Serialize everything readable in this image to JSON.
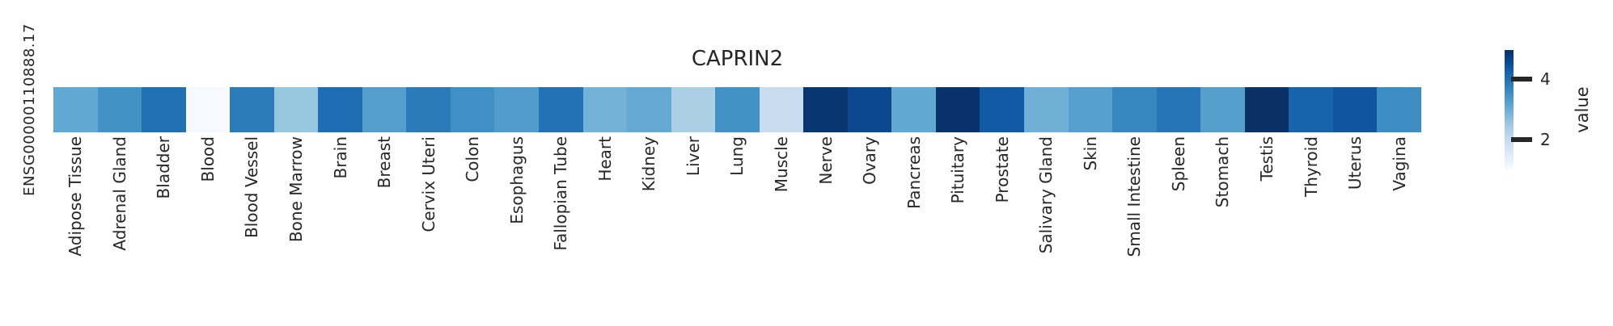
{
  "figure": {
    "title": "CAPRIN2",
    "row_label": "ENSG00000110888.17"
  },
  "colorbar": {
    "label": "value",
    "ticks": [
      {
        "label": "4",
        "frac": 0.243
      },
      {
        "label": "2",
        "frac": 0.75
      }
    ],
    "gradient_top_to_bottom": [
      "#08306b",
      "#08519c",
      "#2171b5",
      "#4292c6",
      "#6baed6",
      "#9ecae1",
      "#c6dbef",
      "#deebf7",
      "#f7fbff"
    ]
  },
  "chart_data": {
    "type": "heatmap",
    "title": "CAPRIN2",
    "rows": [
      "ENSG00000110888.17"
    ],
    "columns": [
      "Adipose Tissue",
      "Adrenal Gland",
      "Bladder",
      "Blood",
      "Blood Vessel",
      "Bone Marrow",
      "Brain",
      "Breast",
      "Cervix Uteri",
      "Colon",
      "Esophagus",
      "Fallopian Tube",
      "Heart",
      "Kidney",
      "Liver",
      "Lung",
      "Muscle",
      "Nerve",
      "Ovary",
      "Pancreas",
      "Pituitary",
      "Prostate",
      "Salivary Gland",
      "Skin",
      "Small Intestine",
      "Spleen",
      "Stomach",
      "Testis",
      "Thyroid",
      "Uterus",
      "Vagina"
    ],
    "values": [
      [
        3.1,
        3.5,
        4.0,
        1.1,
        3.8,
        2.55,
        4.0,
        3.3,
        3.85,
        3.55,
        3.3,
        3.95,
        2.9,
        3.1,
        2.3,
        3.5,
        2.0,
        4.8,
        4.6,
        3.1,
        4.85,
        4.4,
        2.9,
        3.25,
        3.7,
        3.9,
        3.25,
        4.95,
        4.2,
        4.35,
        3.6
      ]
    ],
    "cell_colors": [
      "#61a8d2",
      "#4292c6",
      "#2070b4",
      "#f6fafe",
      "#2d7cba",
      "#98c7e0",
      "#1f6eb3",
      "#549ecd",
      "#2b7bb9",
      "#4090c5",
      "#519ccc",
      "#2272b5",
      "#74b2d8",
      "#64aad3",
      "#abd0e6",
      "#4292c6",
      "#c8dcf0",
      "#093670",
      "#0b4890",
      "#61a8d2",
      "#09326c",
      "#115aa5",
      "#70b0d7",
      "#569fce",
      "#3686c0",
      "#2575b7",
      "#559fcd",
      "#0a3066",
      "#1763ac",
      "#10569f",
      "#3e8dc3"
    ],
    "colormap": "Blues",
    "value_range": [
      1.0,
      5.0
    ],
    "colorbar_label": "value",
    "colorbar_ticks": [
      2,
      4
    ],
    "legend_position": "right",
    "grid": false
  }
}
